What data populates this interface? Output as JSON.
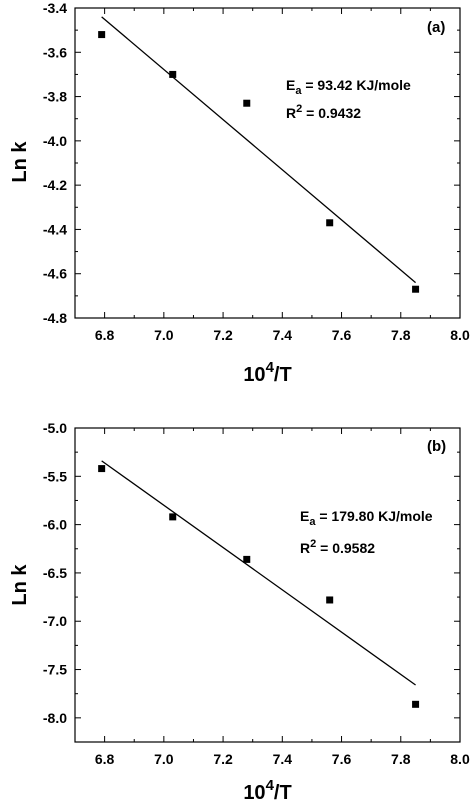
{
  "chart_data": [
    {
      "type": "scatter",
      "panel_label": "(a)",
      "x": [
        6.79,
        7.03,
        7.28,
        7.56,
        7.85
      ],
      "y": [
        -3.52,
        -3.7,
        -3.83,
        -4.37,
        -4.67
      ],
      "fit_line": {
        "x": [
          6.79,
          7.85
        ],
        "y": [
          -3.44,
          -4.64
        ]
      },
      "xlabel": {
        "base": "10",
        "sup": "4",
        "rest": "/T"
      },
      "ylabel": "Ln k",
      "xlim": [
        6.7,
        8.0
      ],
      "ylim": [
        -4.8,
        -3.4
      ],
      "xticks": [
        "6.8",
        "7.0",
        "7.2",
        "7.4",
        "7.6",
        "7.8",
        "8.0"
      ],
      "yticks": [
        "-3.4",
        "-3.6",
        "-3.8",
        "-4.0",
        "-4.2",
        "-4.4",
        "-4.6",
        "-4.8"
      ],
      "annotations": {
        "ea": {
          "prefix": "E",
          "sub": "a",
          "text": " = 93.42 KJ/mole"
        },
        "r2": {
          "prefix": "R",
          "sup": "2",
          "text": " = 0.9432"
        }
      },
      "grid": false
    },
    {
      "type": "scatter",
      "panel_label": "(b)",
      "x": [
        6.79,
        7.03,
        7.28,
        7.56,
        7.85
      ],
      "y": [
        -5.42,
        -5.92,
        -6.36,
        -6.78,
        -7.86
      ],
      "fit_line": {
        "x": [
          6.79,
          7.85
        ],
        "y": [
          -5.34,
          -7.66
        ]
      },
      "xlabel": {
        "base": "10",
        "sup": "4",
        "rest": "/T"
      },
      "ylabel": "Ln k",
      "xlim": [
        6.7,
        8.0
      ],
      "ylim": [
        -8.25,
        -5.0
      ],
      "xticks": [
        "6.8",
        "7.0",
        "7.2",
        "7.4",
        "7.6",
        "7.8",
        "8.0"
      ],
      "yticks": [
        "-5.0",
        "-5.5",
        "-6.0",
        "-6.5",
        "-7.0",
        "-7.5",
        "-8.0"
      ],
      "annotations": {
        "ea": {
          "prefix": "E",
          "sub": "a",
          "text": " = 179.80 KJ/mole"
        },
        "r2": {
          "prefix": "R",
          "sup": "2",
          "text": " = 0.9582"
        }
      },
      "grid": false
    }
  ]
}
